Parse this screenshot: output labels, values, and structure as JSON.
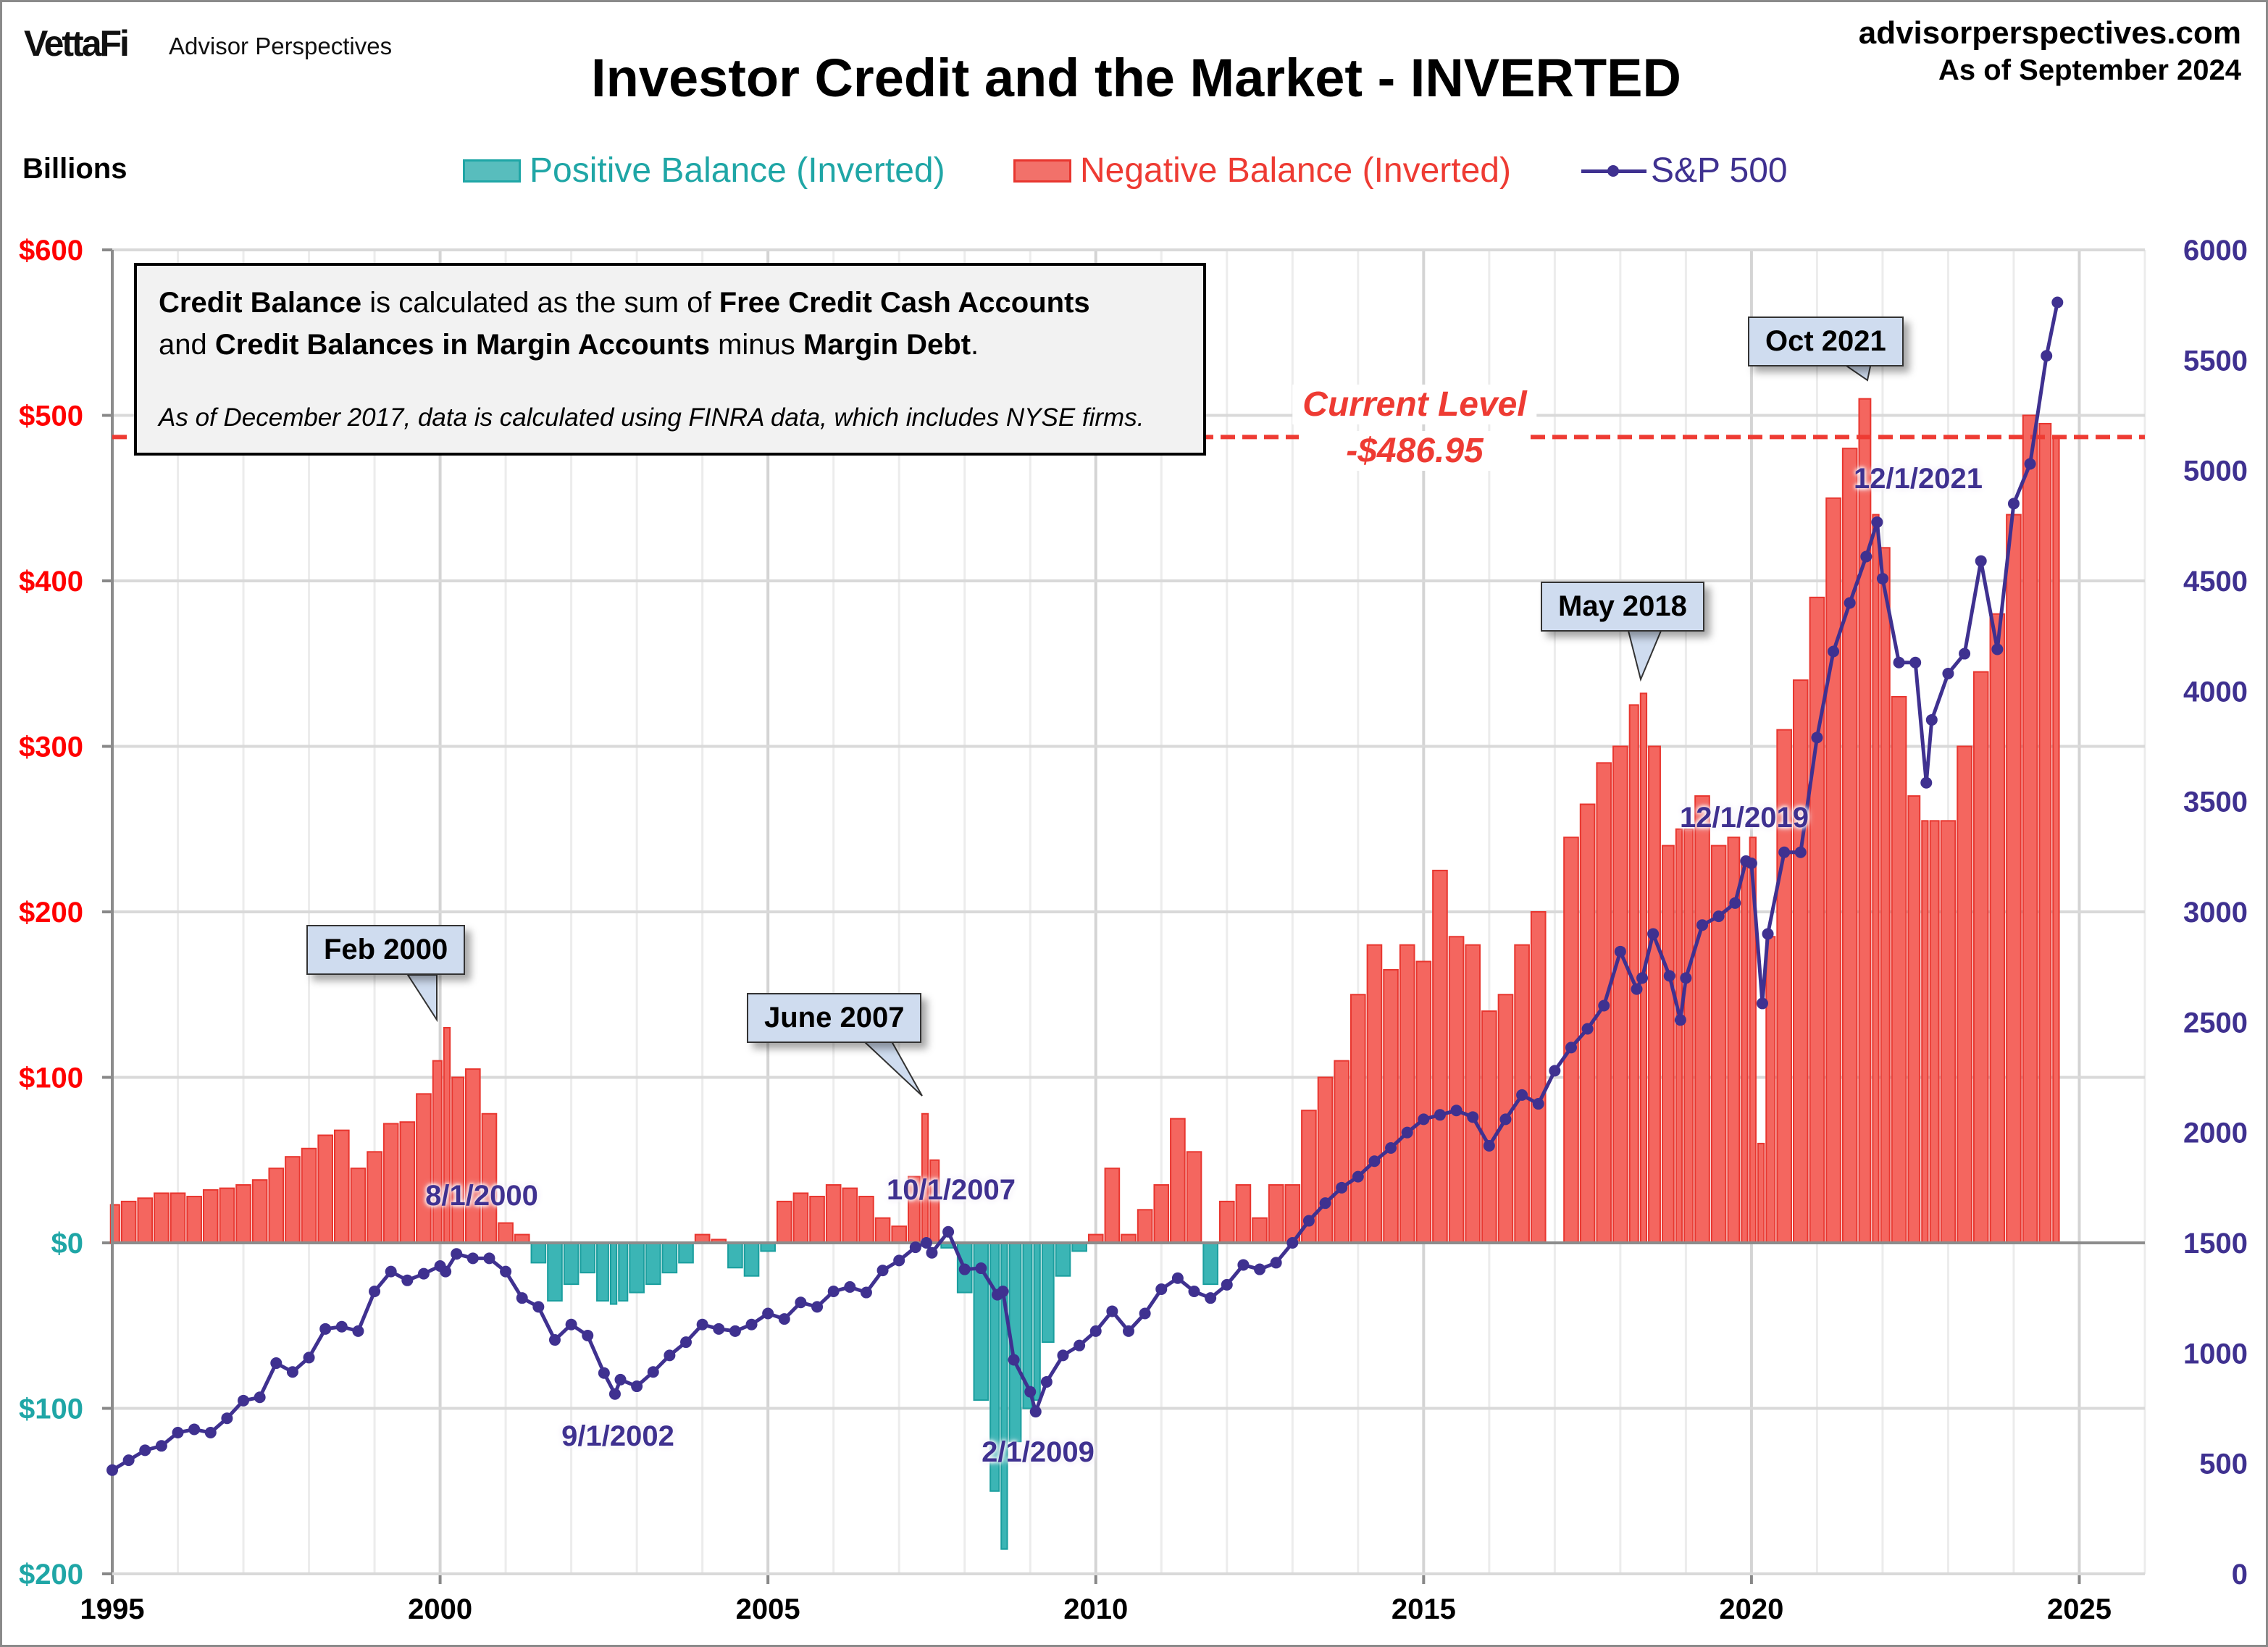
{
  "header": {
    "logo": "VettaFi",
    "brand": "Advisor Perspectives",
    "title": "Investor Credit and the Market - INVERTED",
    "site": "advisorperspectives.com",
    "as_of": "As of September 2024"
  },
  "info_box": {
    "line1": [
      {
        "t": "Credit Balance",
        "b": true
      },
      {
        "t": " is calculated as the sum of ",
        "b": false
      },
      {
        "t": "Free Credit Cash Accounts",
        "b": true
      }
    ],
    "line2": [
      {
        "t": "and ",
        "b": false
      },
      {
        "t": "Credit Balances in Margin Accounts",
        "b": true
      },
      {
        "t": " minus ",
        "b": false
      },
      {
        "t": "Margin Debt",
        "b": true
      },
      {
        "t": ".",
        "b": false
      }
    ],
    "note": "As of December 2017, data is calculated using FINRA data, which includes NYSE firms."
  },
  "chart_data": {
    "type": "bar+line",
    "title": "Investor Credit and the Market - INVERTED",
    "y_left_label": "Billions",
    "legend_position": "top",
    "grid": true,
    "colors": {
      "positive_balance": "#3bb5b5",
      "negative_balance": "#f4665f",
      "sp500": "#3f3190",
      "current_level": "#ee3b33"
    },
    "legend": [
      "Positive Balance (Inverted)",
      "Negative Balance (Inverted)",
      "S&P 500"
    ],
    "x_ticks": [
      "1995",
      "2000",
      "2005",
      "2010",
      "2015",
      "2020",
      "2025"
    ],
    "xlim": [
      "1995-01",
      "2026-01"
    ],
    "y_left_ticks": [
      {
        "value": 600,
        "label": "$600"
      },
      {
        "value": 500,
        "label": "$500"
      },
      {
        "value": 400,
        "label": "$400"
      },
      {
        "value": 300,
        "label": "$300"
      },
      {
        "value": 200,
        "label": "$200"
      },
      {
        "value": 100,
        "label": "$100"
      },
      {
        "value": 0,
        "label": "$0"
      },
      {
        "value": -100,
        "label": "$100"
      },
      {
        "value": -200,
        "label": "$200"
      }
    ],
    "ylim_left": [
      -200,
      600
    ],
    "y_right_ticks": [
      "0",
      "500",
      "1000",
      "1500",
      "2000",
      "2500",
      "3000",
      "3500",
      "4000",
      "4500",
      "5000",
      "5500",
      "6000"
    ],
    "ylim_right": [
      0,
      6000
    ],
    "x": [
      "1995-01",
      "1995-04",
      "1995-07",
      "1995-10",
      "1996-01",
      "1996-04",
      "1996-07",
      "1996-10",
      "1997-01",
      "1997-04",
      "1997-07",
      "1997-10",
      "1998-01",
      "1998-04",
      "1998-07",
      "1998-10",
      "1999-01",
      "1999-04",
      "1999-07",
      "1999-10",
      "2000-01",
      "2000-02",
      "2000-04",
      "2000-07",
      "2000-10",
      "2001-01",
      "2001-04",
      "2001-07",
      "2001-10",
      "2002-01",
      "2002-04",
      "2002-07",
      "2002-09",
      "2002-10",
      "2003-01",
      "2003-04",
      "2003-07",
      "2003-10",
      "2004-01",
      "2004-04",
      "2004-07",
      "2004-10",
      "2005-01",
      "2005-04",
      "2005-07",
      "2005-10",
      "2006-01",
      "2006-04",
      "2006-07",
      "2006-10",
      "2007-01",
      "2007-04",
      "2007-06",
      "2007-07",
      "2007-10",
      "2008-01",
      "2008-04",
      "2008-07",
      "2008-08",
      "2008-10",
      "2009-01",
      "2009-02",
      "2009-04",
      "2009-07",
      "2009-10",
      "2010-01",
      "2010-04",
      "2010-07",
      "2010-10",
      "2011-01",
      "2011-04",
      "2011-07",
      "2011-10",
      "2012-01",
      "2012-04",
      "2012-07",
      "2012-10",
      "2013-01",
      "2013-04",
      "2013-07",
      "2013-10",
      "2014-01",
      "2014-04",
      "2014-07",
      "2014-10",
      "2015-01",
      "2015-04",
      "2015-07",
      "2015-10",
      "2016-01",
      "2016-04",
      "2016-07",
      "2016-10",
      "2017-01",
      "2017-04",
      "2017-07",
      "2017-10",
      "2018-01",
      "2018-04",
      "2018-05",
      "2018-07",
      "2018-10",
      "2018-12",
      "2019-01",
      "2019-04",
      "2019-07",
      "2019-10",
      "2019-12",
      "2020-01",
      "2020-03",
      "2020-04",
      "2020-07",
      "2020-10",
      "2021-01",
      "2021-04",
      "2021-07",
      "2021-10",
      "2021-12",
      "2022-01",
      "2022-04",
      "2022-07",
      "2022-09",
      "2022-10",
      "2023-01",
      "2023-04",
      "2023-07",
      "2023-10",
      "2024-01",
      "2024-04",
      "2024-07",
      "2024-09"
    ],
    "series": [
      {
        "name": "Credit Balance (Inverted)",
        "axis": "left",
        "unit": "Billions",
        "values": [
          23,
          25,
          27,
          30,
          30,
          28,
          32,
          33,
          35,
          38,
          45,
          52,
          57,
          65,
          68,
          45,
          55,
          72,
          73,
          90,
          110,
          130,
          100,
          105,
          78,
          12,
          5,
          -12,
          -35,
          -25,
          -18,
          -35,
          -37,
          -35,
          -30,
          -25,
          -18,
          -12,
          5,
          2,
          -15,
          -20,
          -5,
          25,
          30,
          28,
          35,
          33,
          28,
          15,
          10,
          40,
          78,
          50,
          -3,
          -30,
          -95,
          -150,
          -185,
          -120,
          -100,
          -95,
          -60,
          -20,
          -5,
          5,
          45,
          5,
          20,
          35,
          75,
          55,
          -25,
          25,
          35,
          15,
          35,
          35,
          80,
          100,
          110,
          150,
          180,
          165,
          180,
          170,
          225,
          185,
          180,
          140,
          150,
          180,
          200,
          null,
          245,
          265,
          290,
          300,
          325,
          332,
          300,
          240,
          250,
          250,
          270,
          240,
          245,
          230,
          245,
          60,
          185,
          310,
          340,
          390,
          450,
          480,
          510,
          440,
          420,
          330,
          270,
          255,
          255,
          255,
          300,
          345,
          380,
          440,
          500,
          495,
          487
        ]
      },
      {
        "name": "S&P 500",
        "axis": "right",
        "values": [
          470,
          515,
          560,
          580,
          640,
          655,
          640,
          705,
          785,
          800,
          955,
          915,
          980,
          1110,
          1120,
          1100,
          1280,
          1370,
          1330,
          1360,
          1395,
          1370,
          1450,
          1430,
          1430,
          1370,
          1250,
          1210,
          1060,
          1130,
          1080,
          910,
          815,
          880,
          850,
          915,
          990,
          1050,
          1130,
          1110,
          1100,
          1130,
          1180,
          1155,
          1230,
          1210,
          1280,
          1300,
          1275,
          1375,
          1420,
          1480,
          1500,
          1455,
          1550,
          1380,
          1385,
          1265,
          1280,
          970,
          825,
          735,
          870,
          990,
          1035,
          1100,
          1190,
          1100,
          1180,
          1290,
          1340,
          1280,
          1250,
          1310,
          1400,
          1380,
          1410,
          1500,
          1600,
          1680,
          1750,
          1800,
          1870,
          1930,
          2000,
          2060,
          2080,
          2100,
          2070,
          1940,
          2060,
          2170,
          2130,
          2280,
          2385,
          2470,
          2575,
          2820,
          2650,
          2700,
          2900,
          2710,
          2510,
          2700,
          2940,
          2980,
          3040,
          3230,
          3220,
          2585,
          2900,
          3270,
          3270,
          3790,
          4180,
          4400,
          4610,
          4766,
          4510,
          4130,
          4130,
          3585,
          3870,
          4080,
          4170,
          4590,
          4190,
          4850,
          5030,
          5520,
          5762
        ]
      }
    ],
    "current_level": {
      "value": 486.95,
      "label": "Current Level",
      "value_label": "-$486.95"
    },
    "callouts": [
      {
        "label": "Feb 2000",
        "x": "2000-02"
      },
      {
        "label": "June 2007",
        "x": "2007-06"
      },
      {
        "label": "May 2018",
        "x": "2018-05"
      },
      {
        "label": "Oct 2021",
        "x": "2021-10"
      }
    ],
    "sp_labels": [
      {
        "label": "8/1/2000"
      },
      {
        "label": "9/1/2002"
      },
      {
        "label": "10/1/2007"
      },
      {
        "label": "2/1/2009"
      },
      {
        "label": "12/1/2019"
      },
      {
        "label": "12/1/2021"
      }
    ]
  }
}
